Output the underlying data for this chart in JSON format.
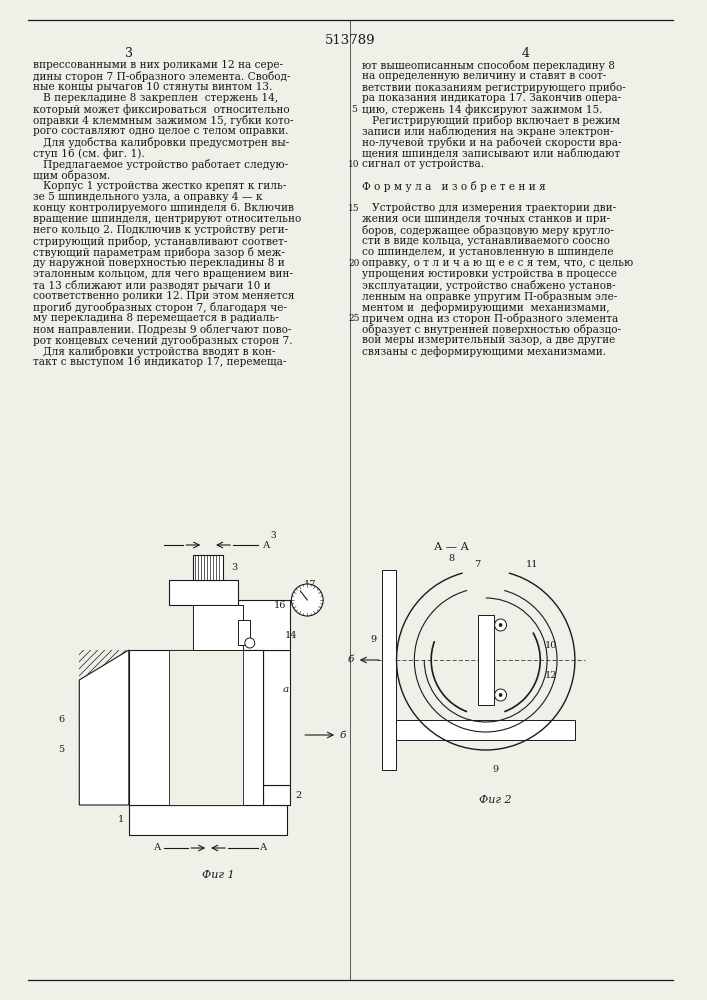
{
  "page_number": "513789",
  "col_left_number": "3",
  "col_right_number": "4",
  "background_color": "#f0efe8",
  "text_color": "#1a1a1a",
  "line_color": "#1a1a1a",
  "left_column_text": [
    "впрессованными в них роликами 12 на сере-",
    "дины сторон 7 П-образного элемента. Свобод-",
    "ные концы рычагов 10 стянуты винтом 13.",
    "   В перекладине 8 закреплен  стержень 14,",
    "который может фиксироваться  относительно",
    "оправки 4 клеммным зажимом 15, губки кото-",
    "рого составляют одно целое с телом оправки.",
    "   Для удобства калибровки предусмотрен вы-",
    "ступ 16 (см. фиг. 1).",
    "   Предлагаемое устройство работает следую-",
    "щим образом.",
    "   Корпус 1 устройства жестко крепят к гиль-",
    "зе 5 шпиндельного узла, а оправку 4 — к",
    "концу контролируемого шпинделя 6. Включив",
    "вращение шпинделя, центрируют относительно",
    "него кольцо 2. Подключив к устройству реги-",
    "стрирующий прибор, устанавливают соответ-",
    "ствующий параметрам прибора зазор б меж-",
    "ду наружной поверхностью перекладины 8 и",
    "эталонным кольцом, для чего вращением вин-",
    "та 13 сближают или разводят рычаги 10 и",
    "соответственно ролики 12. При этом меняется",
    "прогиб дугообразных сторон 7, благодаря че-",
    "му перекладина 8 перемещается в радиаль-",
    "ном направлении. Подрезы 9 облегчают пово-",
    "рот концевых сечений дугообразных сторон 7.",
    "   Для калибровки устройства вводят в кон-",
    "такт с выступом 16 индикатор 17, перемеща-"
  ],
  "right_column_text": [
    "ют вышеописанным способом перекладину 8",
    "на определенную величину и ставят в соот-",
    "ветствии показаниям регистрирующего прибо-",
    "ра показания индикатора 17. Закончив опера-",
    "цию, стержень 14 фиксируют зажимом 15.",
    "   Регистрирующий прибор включает в режим",
    "записи или наблюдения на экране электрон-",
    "но-лучевой трубки и на рабочей скорости вра-",
    "щения шпинделя записывают или наблюдают",
    "сигнал от устройства.",
    "",
    "Ф о р м у л а   и з о б р е т е н и я",
    "",
    "   Устройство для измерения траектории дви-",
    "жения оси шпинделя точных станков и при-",
    "боров, содержащее образцовую меру кругло-",
    "сти в виде кольца, устанавливаемого соосно",
    "со шпинделем, и установленную в шпинделе",
    "оправку, о т л и ч а ю щ е е с я тем, что, с целью",
    "упрощения юстировки устройства в процессе",
    "эксплуатации, устройство снабжено установ-",
    "ленным на оправке упругим П-образным эле-",
    "ментом и  деформирующими  механизмами,",
    "причем одна из сторон П-образного элемента",
    "образует с внутренней поверхностью образцо-",
    "вой меры измерительный зазор, а две другие",
    "связаны с деформирующими механизмами."
  ],
  "fig1_label": "Фиг 1",
  "fig2_label": "Фиг 2"
}
